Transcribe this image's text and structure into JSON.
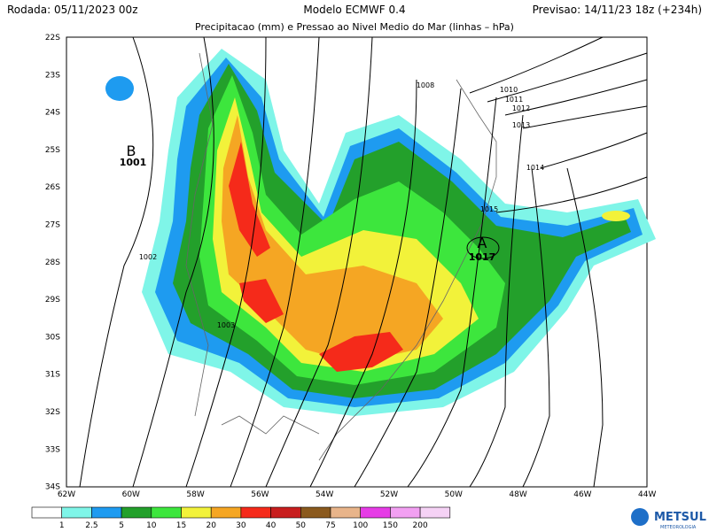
{
  "header": {
    "left": "Rodada: 05/11/2023 00z",
    "center": "Modelo ECMWF 0.4",
    "right": "Previsao: 14/11/23 18z (+234h)",
    "subtitle": "Precipitacao (mm) e Pressao ao Nivel Medio do Mar (linhas – hPa)"
  },
  "map": {
    "lat_labels": [
      "22S",
      "23S",
      "24S",
      "25S",
      "26S",
      "27S",
      "28S",
      "29S",
      "30S",
      "31S",
      "32S",
      "33S",
      "34S"
    ],
    "lon_labels": [
      "62W",
      "60W",
      "58W",
      "56W",
      "54W",
      "52W",
      "50W",
      "48W",
      "46W",
      "44W"
    ],
    "isobar_labels": [
      "1008",
      "1010",
      "1011",
      "1012",
      "1013",
      "1014",
      "1015",
      "1017",
      "1001",
      "1002",
      "1003"
    ],
    "centers": [
      "B",
      "A"
    ]
  },
  "legend": {
    "colors": [
      "#ffffff",
      "#7ff5e8",
      "#1e9bf0",
      "#23a02b",
      "#3de63d",
      "#f2f23a",
      "#f5a623",
      "#f52a1a",
      "#c81e1e",
      "#8b5a1e",
      "#e8b48a",
      "#e63ce6",
      "#f2a0f2",
      "#f5d2f5"
    ],
    "labels": [
      "1",
      "2.5",
      "5",
      "10",
      "15",
      "20",
      "30",
      "40",
      "50",
      "75",
      "100",
      "150",
      "200"
    ]
  },
  "logo": {
    "name": "METSUL",
    "tagline": "METEOROLOGIA"
  }
}
